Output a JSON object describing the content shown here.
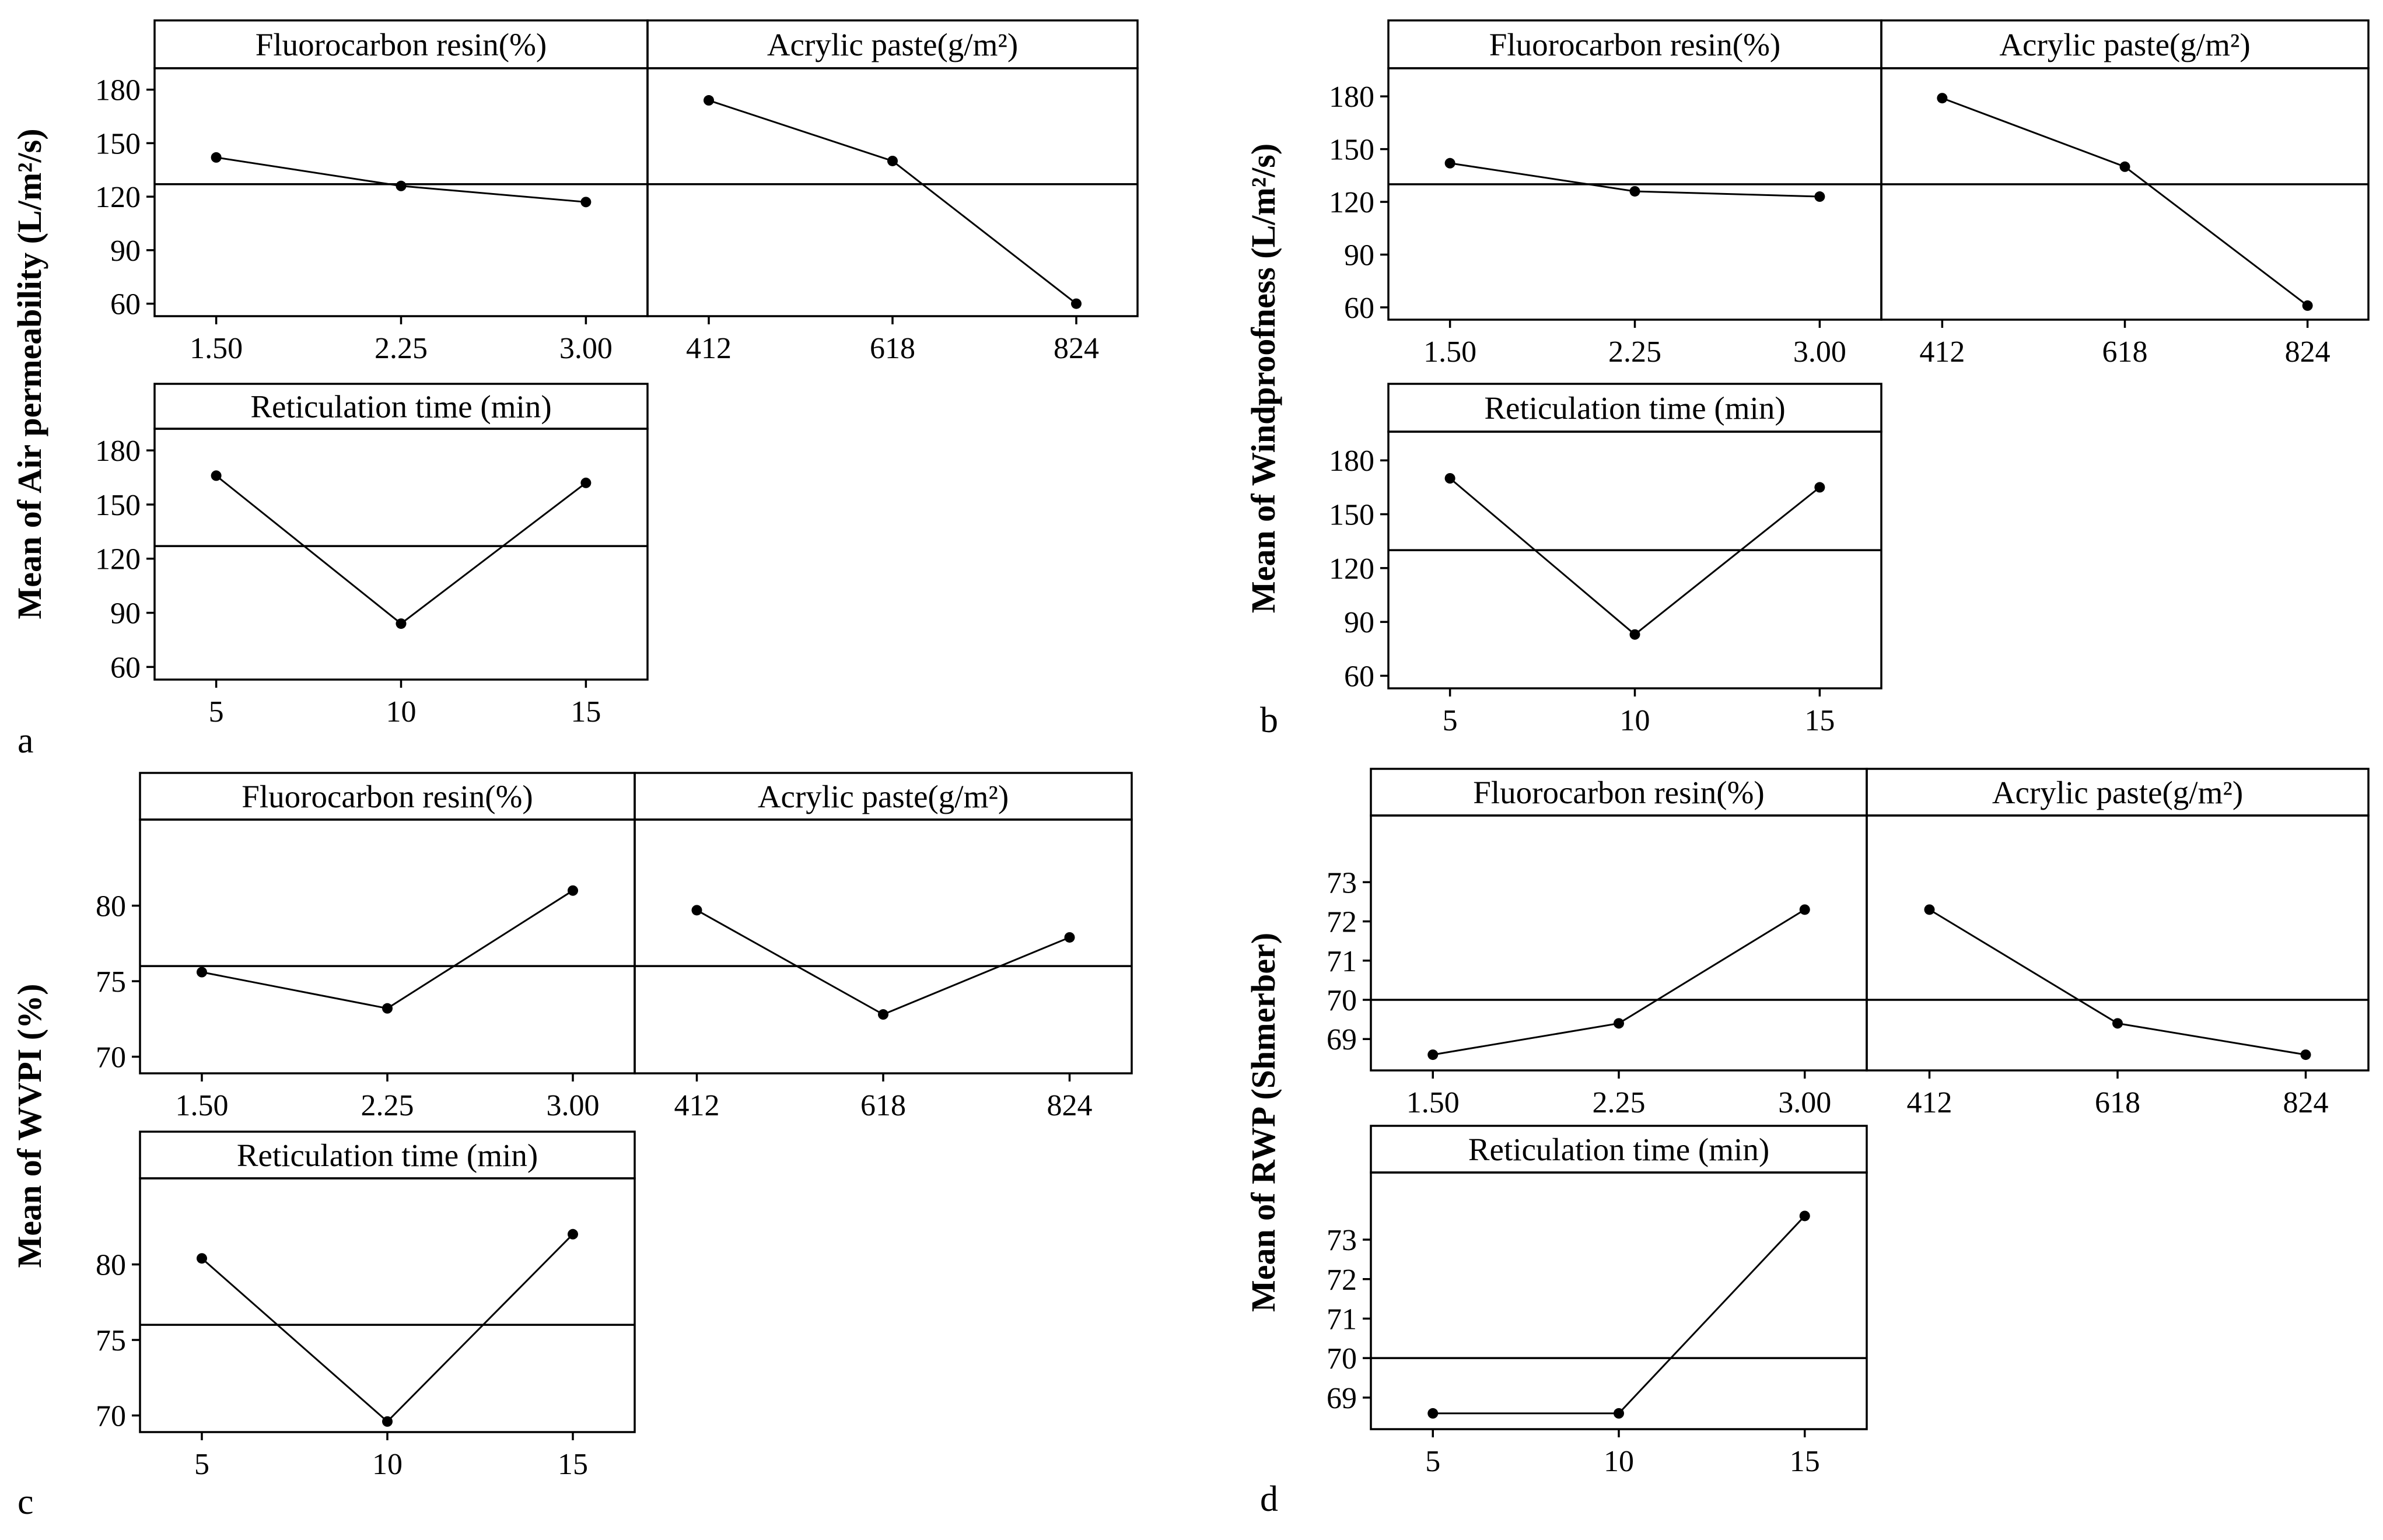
{
  "chart_data": [
    {
      "panel_label": "a",
      "type": "line",
      "ylabel": "Mean of Air permeability (L/m²/s)",
      "yticks": [
        "60",
        "90",
        "120",
        "150",
        "180"
      ],
      "ylim": [
        53,
        192
      ],
      "reference_mean": 127,
      "factors": [
        {
          "title": "Fluorocarbon resin(%)",
          "levels": [
            "1.50",
            "2.25",
            "3.00"
          ],
          "values": [
            142,
            126,
            117
          ]
        },
        {
          "title": "Acrylic paste(g/m²)",
          "levels": [
            "412",
            "618",
            "824"
          ],
          "values": [
            174,
            140,
            60
          ]
        },
        {
          "title": "Reticulation time (min)",
          "levels": [
            "5",
            "10",
            "15"
          ],
          "values": [
            166,
            84,
            162
          ]
        }
      ]
    },
    {
      "panel_label": "b",
      "type": "line",
      "ylabel": "Mean of Windproofness (L/m²/s)",
      "yticks": [
        "60",
        "90",
        "120",
        "150",
        "180"
      ],
      "ylim": [
        53,
        196
      ],
      "reference_mean": 130,
      "factors": [
        {
          "title": "Fluorocarbon resin(%)",
          "levels": [
            "1.50",
            "2.25",
            "3.00"
          ],
          "values": [
            142,
            126,
            123
          ]
        },
        {
          "title": "Acrylic paste(g/m²)",
          "levels": [
            "412",
            "618",
            "824"
          ],
          "values": [
            179,
            140,
            61
          ]
        },
        {
          "title": "Reticulation time (min)",
          "levels": [
            "5",
            "10",
            "15"
          ],
          "values": [
            170,
            83,
            165
          ]
        }
      ]
    },
    {
      "panel_label": "c",
      "type": "line",
      "ylabel": "Mean of WVPI (%)",
      "yticks": [
        "70",
        "75",
        "80"
      ],
      "ylim": [
        68.9,
        85.7
      ],
      "reference_mean": 76,
      "factors": [
        {
          "title": "Fluorocarbon resin(%)",
          "levels": [
            "1.50",
            "2.25",
            "3.00"
          ],
          "values": [
            75.6,
            73.2,
            81.0
          ]
        },
        {
          "title": "Acrylic paste(g/m²)",
          "levels": [
            "412",
            "618",
            "824"
          ],
          "values": [
            79.7,
            72.8,
            77.9
          ]
        },
        {
          "title": "Reticulation time (min)",
          "levels": [
            "5",
            "10",
            "15"
          ],
          "values": [
            80.4,
            69.6,
            82.0
          ]
        }
      ]
    },
    {
      "panel_label": "d",
      "type": "line",
      "ylabel": "Mean of RWP (Shmerber)",
      "yticks": [
        "69",
        "70",
        "71",
        "72",
        "73"
      ],
      "ylim": [
        68.2,
        74.7
      ],
      "reference_mean": 70,
      "factors": [
        {
          "title": "Fluorocarbon resin(%)",
          "levels": [
            "1.50",
            "2.25",
            "3.00"
          ],
          "values": [
            68.6,
            69.4,
            72.3
          ]
        },
        {
          "title": "Acrylic paste(g/m²)",
          "levels": [
            "412",
            "618",
            "824"
          ],
          "values": [
            72.3,
            69.4,
            68.6
          ]
        },
        {
          "title": "Reticulation time (min)",
          "levels": [
            "5",
            "10",
            "15"
          ],
          "values": [
            68.6,
            68.6,
            73.6
          ]
        }
      ]
    }
  ]
}
